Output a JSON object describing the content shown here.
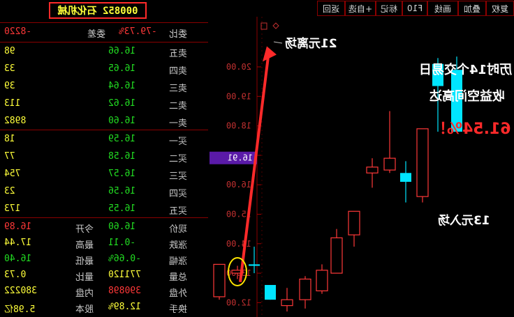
{
  "quote": {
    "title": "000852 石化机械",
    "header": {
      "label": "委比",
      "value": "-79.73%",
      "mid": "委差",
      "diff": "-8220"
    },
    "asks": [
      {
        "label": "卖五",
        "price": "16.66",
        "vol": "98"
      },
      {
        "label": "卖四",
        "price": "16.65",
        "vol": "33"
      },
      {
        "label": "卖三",
        "price": "16.64",
        "vol": "39"
      },
      {
        "label": "卖二",
        "price": "16.62",
        "vol": "113"
      },
      {
        "label": "卖一",
        "price": "16.60",
        "vol": "8982"
      }
    ],
    "bids": [
      {
        "label": "买一",
        "price": "16.59",
        "vol": "18"
      },
      {
        "label": "买二",
        "price": "16.58",
        "vol": "77"
      },
      {
        "label": "买三",
        "price": "16.57",
        "vol": "754"
      },
      {
        "label": "买四",
        "price": "16.56",
        "vol": "23"
      },
      {
        "label": "买五",
        "price": "16.55",
        "vol": "173"
      }
    ],
    "stats": [
      {
        "label": "现价",
        "value": "16.60",
        "mid": "今开",
        "mval": "16.89"
      },
      {
        "label": "涨跌",
        "value": "-0.11",
        "mid": "最高",
        "mval": "17.44"
      },
      {
        "label": "涨幅",
        "value": "-0.66%",
        "mid": "最低",
        "mval": "16.40"
      },
      {
        "label": "总量",
        "value": "771120",
        "mid": "量比",
        "mval": "0.73"
      },
      {
        "label": "外盘",
        "value": "390898",
        "mid": "内盘",
        "mval": "380222"
      },
      {
        "label": "换手",
        "value": "12.89%",
        "mid": "股本",
        "mval": "5.98亿"
      }
    ]
  },
  "toolbar": [
    "复权",
    "叠加",
    "画线",
    "F10",
    "标记",
    "+自选",
    "返回"
  ],
  "chart_data": {
    "type": "candlestick",
    "y_ticks": [
      "20.00",
      "19.00",
      "18.00",
      "17.00",
      "16.00",
      "15.00",
      "14.00",
      "13.00",
      "12.00"
    ],
    "current_price_tag": "16.91",
    "candles": [
      {
        "o": 17.8,
        "c": 19.9,
        "h": 20.35,
        "l": 17.8,
        "color": "cyan"
      },
      {
        "o": 19.35,
        "c": 20.1,
        "h": 20.3,
        "l": 17.8,
        "color": "cyan"
      },
      {
        "o": 17.9,
        "c": 15.6,
        "h": 17.9,
        "l": 15.4,
        "color": "red"
      },
      {
        "o": 16.1,
        "c": 16.4,
        "h": 16.8,
        "l": 15.4,
        "color": "cyan"
      },
      {
        "o": 16.5,
        "c": 16.9,
        "h": 18.5,
        "l": 16.4,
        "color": "red"
      },
      {
        "o": 16.6,
        "c": 16.4,
        "h": 16.9,
        "l": 15.9,
        "color": "red"
      },
      {
        "o": 15.1,
        "c": 14.3,
        "h": 15.1,
        "l": 13.9,
        "color": "red"
      },
      {
        "o": 14.2,
        "c": 13.0,
        "h": 14.5,
        "l": 13.0,
        "color": "red"
      },
      {
        "o": 13.1,
        "c": 12.4,
        "h": 13.3,
        "l": 12.3,
        "color": "red"
      },
      {
        "o": 12.8,
        "c": 12.1,
        "h": 12.9,
        "l": 11.8,
        "color": "red"
      },
      {
        "o": 12.1,
        "c": 11.9,
        "h": 12.5,
        "l": 11.7,
        "color": "red"
      },
      {
        "o": 12.1,
        "c": 12.6,
        "h": 12.6,
        "l": 12.1,
        "color": "cyan"
      },
      {
        "o": 13.25,
        "c": 13.3,
        "h": 13.9,
        "l": 13.0,
        "color": "cyan"
      },
      {
        "o": 13.0,
        "c": 13.1,
        "h": 13.25,
        "l": 12.8,
        "color": "red"
      },
      {
        "o": 13.3,
        "c": 12.2,
        "h": 13.3,
        "l": 12.1,
        "color": "red"
      }
    ]
  },
  "annotations": {
    "exit": "21元离场",
    "entry": "13元入场",
    "line1": "历时14个交易日",
    "line2": "收益空间高达",
    "line3": "61.54%！"
  },
  "colors": {
    "up": "#ff3838",
    "down": "#00e5ff",
    "arrow": "#ff2a2a",
    "highlight": "#ffe600"
  }
}
